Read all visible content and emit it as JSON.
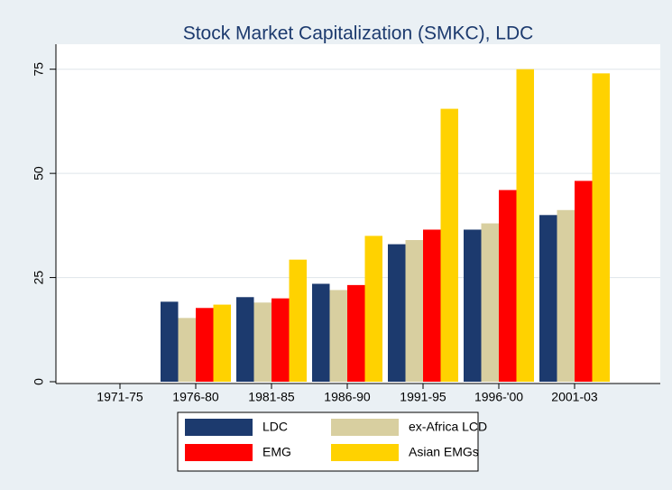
{
  "chart_data": {
    "type": "bar",
    "title": "Stock Market Capitalization (SMKC), LDC",
    "categories": [
      "1971-75",
      "1976-80",
      "1981-85",
      "1986-90",
      "1991-95",
      "1996-'00",
      "2001-03"
    ],
    "series": [
      {
        "name": "LDC",
        "color": "#1c3a6e",
        "values": [
          null,
          19.2,
          20.3,
          23.5,
          33,
          36.5,
          40
        ]
      },
      {
        "name": "ex-Africa LCD",
        "color": "#d8cfa0",
        "values": [
          null,
          15.3,
          19,
          22,
          34,
          38,
          41.2
        ]
      },
      {
        "name": "EMG",
        "color": "#ff0000",
        "values": [
          null,
          17.7,
          20,
          23.2,
          36.5,
          46,
          48.2
        ]
      },
      {
        "name": "Asian EMGs",
        "color": "#ffd200",
        "values": [
          null,
          18.5,
          29.3,
          35,
          65.5,
          75,
          74
        ]
      }
    ],
    "ylim": [
      0,
      81
    ],
    "yticks": [
      0,
      25,
      50,
      75
    ],
    "grid": true,
    "legend": "bottom"
  }
}
